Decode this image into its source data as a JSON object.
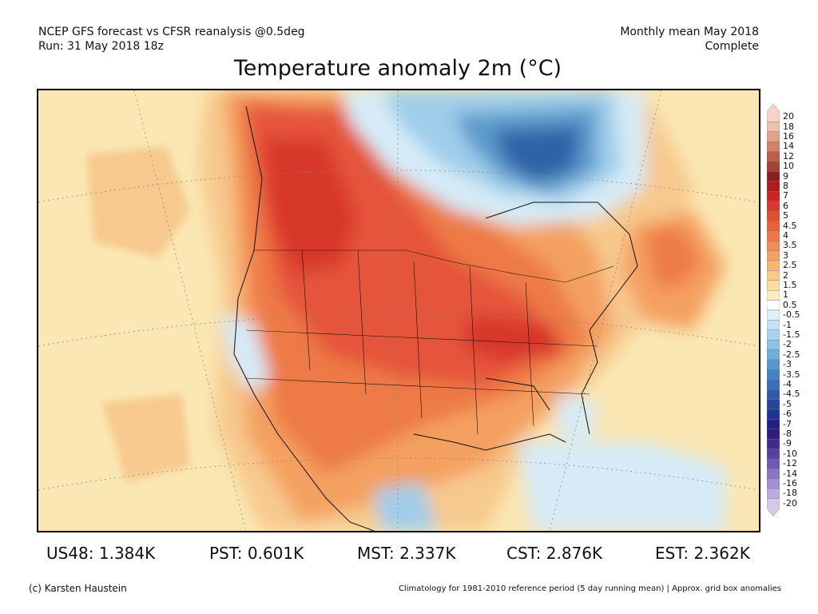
{
  "header": {
    "left_line1": "NCEP GFS forecast vs CFSR reanalysis @0.5deg",
    "left_line2": "Run: 31 May 2018 18z",
    "right_line1": "Monthly mean May 2018",
    "right_line2": "Complete"
  },
  "title": "Temperature anomaly 2m (°C)",
  "colorbar": {
    "labels": [
      "20",
      "18",
      "16",
      "14",
      "12",
      "10",
      "9",
      "8",
      "7",
      "6",
      "5",
      "4.5",
      "4",
      "3.5",
      "3",
      "2.5",
      "2",
      "1.5",
      "1",
      "0.5",
      "-0.5",
      "-1",
      "-1.5",
      "-2",
      "-2.5",
      "-3",
      "-3.5",
      "-4",
      "-4.5",
      "-5",
      "-6",
      "-7",
      "-8",
      "-9",
      "-10",
      "-12",
      "-14",
      "-16",
      "-18",
      "-20"
    ],
    "colors": [
      "#f6d5c8",
      "#eec1ad",
      "#e2a28a",
      "#d0836a",
      "#b9604a",
      "#a24533",
      "#8e1f1f",
      "#b01c1c",
      "#c92525",
      "#d93a2a",
      "#e24e32",
      "#e9613b",
      "#ef7646",
      "#f28b52",
      "#f4a262",
      "#f6b773",
      "#f8cb88",
      "#f9dca0",
      "#fbecc0",
      "#ffffff",
      "#e0f0fb",
      "#c6e3f5",
      "#a9d3ee",
      "#8cc2e5",
      "#71afdb",
      "#5799cd",
      "#4684c0",
      "#3a6fb3",
      "#2f5aa6",
      "#26469a",
      "#1f348f",
      "#231f82",
      "#2f1c7e",
      "#3f2b8e",
      "#5840a2",
      "#7158b5",
      "#8b73c5",
      "#a38fd4",
      "#bcadde",
      "#d4cae9"
    ]
  },
  "stats": [
    {
      "label": "US48: 1.384K"
    },
    {
      "label": "PST: 0.601K"
    },
    {
      "label": "MST: 2.337K"
    },
    {
      "label": "CST: 2.876K"
    },
    {
      "label": "EST: 2.362K"
    }
  ],
  "footer": {
    "left": "(c) Karsten Haustein",
    "right": "Climatology for 1981-2010 reference period (5 day running mean) | Approx. grid box anomalies"
  },
  "map": {
    "colors": {
      "ocean_base": "#fbe7b3",
      "warm_1": "#f7c98e",
      "warm_2": "#f4a060",
      "warm_3": "#ee7a47",
      "warm_4": "#e5553a",
      "warm_5": "#d8392b",
      "cool_1": "#d6ebf7",
      "cool_2": "#9fcdea",
      "cool_3": "#5d9bcc",
      "cool_4": "#2f63a8",
      "lines": "#111111"
    }
  }
}
